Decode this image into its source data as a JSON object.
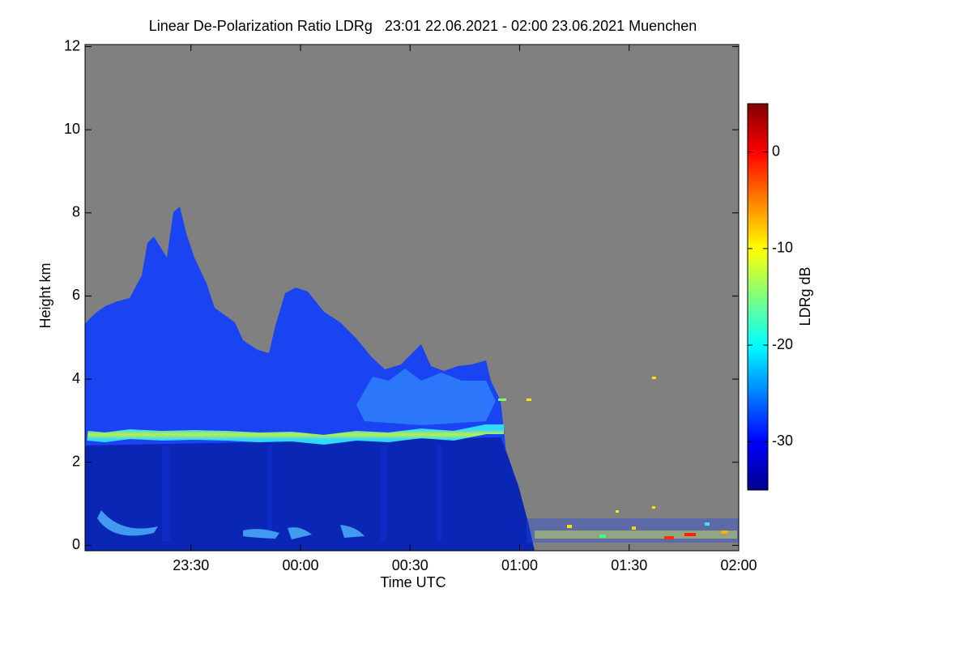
{
  "chart_data": {
    "type": "heatmap",
    "title": "Linear De-Polarization Ratio LDRg   23:01 22.06.2021 - 02:00 23.06.2021 Muenchen",
    "x_label": "Time UTC",
    "y_label": "Height km",
    "colorbar_label": "LDRg dB",
    "colormap": "jet",
    "background_color": "#808080",
    "xlim": [
      "23:01",
      "02:00"
    ],
    "xticks": [
      "23:30",
      "00:00",
      "00:30",
      "01:00",
      "01:30",
      "02:00"
    ],
    "ylim": [
      -0.13,
      12.05
    ],
    "yticks": [
      0,
      2,
      4,
      6,
      8,
      10,
      12
    ],
    "clim": [
      -35,
      5
    ],
    "cticks": [
      -30,
      -20,
      -10,
      0
    ]
  }
}
